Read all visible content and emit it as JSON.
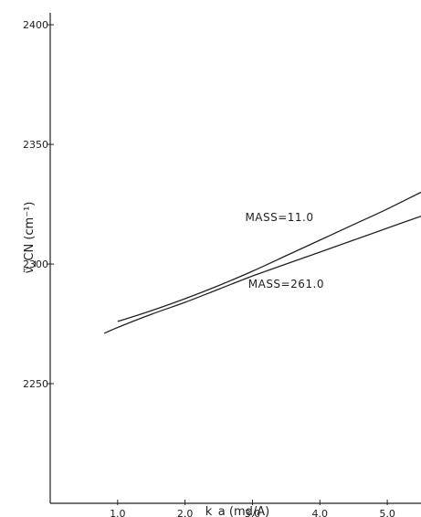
{
  "chart_data": {
    "type": "line",
    "title": "",
    "xlabel": "k_a (md/A)",
    "ylabel": "ν̃_CN (cm⁻¹)",
    "xlim": [
      0,
      5.5
    ],
    "ylim": [
      2200,
      2405
    ],
    "x_ticks": [
      1.0,
      2.0,
      3.0,
      4.0,
      5.0
    ],
    "x_tick_labels": [
      "1.0",
      "2.0",
      "3.0",
      "4.0",
      "5.0"
    ],
    "y_ticks": [
      2250,
      2300,
      2350,
      2400
    ],
    "y_tick_labels": [
      "2250",
      "2300",
      "2350",
      "2400"
    ],
    "grid": false,
    "series": [
      {
        "name": "MASS=11.0",
        "x": [
          1.0,
          1.5,
          2.0,
          2.5,
          3.0,
          3.5,
          4.0,
          4.5,
          5.0,
          5.5
        ],
        "y": [
          2276,
          2280.5,
          2285.5,
          2291,
          2297,
          2303.5,
          2310,
          2316.5,
          2323,
          2330
        ]
      },
      {
        "name": "MASS=261.0",
        "x": [
          0.8,
          1.0,
          1.5,
          2.0,
          2.5,
          3.0,
          3.5,
          4.0,
          4.5,
          5.0,
          5.5
        ],
        "y": [
          2271,
          2273.5,
          2279,
          2284,
          2289.5,
          2295,
          2300,
          2305,
          2310,
          2315,
          2320
        ]
      }
    ],
    "annotations": [
      {
        "text": "MASS=11.0",
        "x": 3.4,
        "y": 2318
      },
      {
        "text": "MASS=261.0",
        "x": 3.5,
        "y": 2290
      }
    ]
  }
}
